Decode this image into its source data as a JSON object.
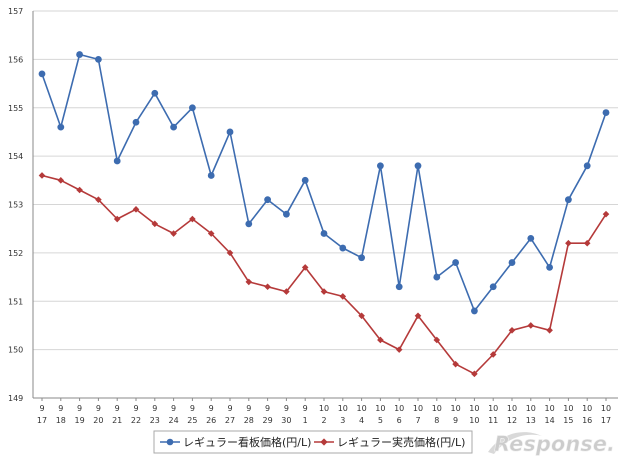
{
  "chart_data": {
    "type": "line",
    "ylim": [
      149,
      157
    ],
    "y_ticks": [
      "149",
      "150",
      "151",
      "152",
      "153",
      "154",
      "155",
      "156",
      "157"
    ],
    "x_months": [
      "9",
      "9",
      "9",
      "9",
      "9",
      "9",
      "9",
      "9",
      "9",
      "9",
      "9",
      "9",
      "9",
      "9",
      "9",
      "10",
      "10",
      "10",
      "10",
      "10",
      "10",
      "10",
      "10",
      "10",
      "10",
      "10",
      "10",
      "10",
      "10",
      "10",
      "10"
    ],
    "x_days": [
      "17",
      "18",
      "19",
      "20",
      "21",
      "22",
      "23",
      "24",
      "25",
      "26",
      "27",
      "28",
      "29",
      "30",
      "1",
      "2",
      "3",
      "4",
      "5",
      "6",
      "7",
      "8",
      "9",
      "10",
      "11",
      "12",
      "13",
      "14",
      "15",
      "16",
      "17"
    ],
    "grid": "horizontal",
    "legend_position": "bottom",
    "series": [
      {
        "name": "レギュラー看板価格(円/L)",
        "color": "#3d6cb0",
        "marker": "circle",
        "values": [
          155.7,
          154.6,
          156.1,
          156.0,
          153.9,
          154.7,
          155.3,
          154.6,
          155.0,
          153.6,
          154.5,
          152.6,
          153.1,
          152.8,
          153.5,
          152.4,
          152.1,
          151.9,
          153.8,
          151.3,
          153.8,
          151.5,
          151.8,
          150.8,
          151.3,
          151.8,
          152.3,
          151.7,
          153.1,
          153.8,
          154.9
        ]
      },
      {
        "name": "レギュラー実売価格(円/L)",
        "color": "#b53a3a",
        "marker": "diamond",
        "values": [
          153.6,
          153.5,
          153.3,
          153.1,
          152.7,
          152.9,
          152.6,
          152.4,
          152.7,
          152.4,
          152.0,
          151.4,
          151.3,
          151.2,
          151.7,
          151.2,
          151.1,
          150.7,
          150.2,
          150.0,
          150.7,
          150.2,
          149.7,
          149.5,
          149.9,
          150.4,
          150.5,
          150.4,
          152.2,
          152.2,
          152.8
        ]
      }
    ]
  },
  "watermark": {
    "text": "Response."
  }
}
